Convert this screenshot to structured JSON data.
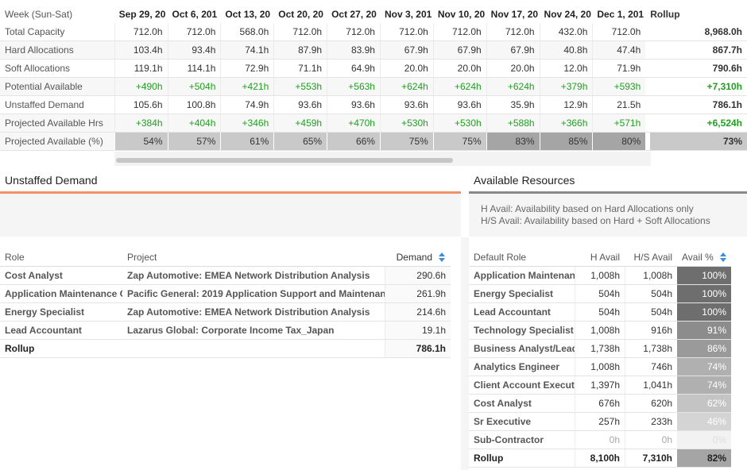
{
  "capacity": {
    "header_label": "Week (Sun-Sat)",
    "weeks": [
      "Sep 29, 20",
      "Oct 6, 201",
      "Oct 13, 20",
      "Oct 20, 20",
      "Oct 27, 20",
      "Nov 3, 201",
      "Nov 10, 20",
      "Nov 17, 20",
      "Nov 24, 20",
      "Dec 1, 201"
    ],
    "rollup_label": "Rollup",
    "rows": [
      {
        "label": "Total Capacity",
        "values": [
          "712.0h",
          "712.0h",
          "568.0h",
          "712.0h",
          "712.0h",
          "712.0h",
          "712.0h",
          "712.0h",
          "432.0h",
          "712.0h"
        ],
        "rollup": "8,968.0h"
      },
      {
        "label": "Hard Allocations",
        "values": [
          "103.4h",
          "93.4h",
          "74.1h",
          "87.9h",
          "83.9h",
          "67.9h",
          "67.9h",
          "67.9h",
          "40.8h",
          "47.4h"
        ],
        "rollup": "867.7h"
      },
      {
        "label": "Soft Allocations",
        "values": [
          "119.1h",
          "114.1h",
          "72.9h",
          "71.1h",
          "64.9h",
          "20.0h",
          "20.0h",
          "20.0h",
          "12.0h",
          "71.9h"
        ],
        "rollup": "790.6h"
      },
      {
        "label": "Potential Available",
        "values": [
          "+490h",
          "+504h",
          "+421h",
          "+553h",
          "+563h",
          "+624h",
          "+624h",
          "+624h",
          "+379h",
          "+593h"
        ],
        "rollup": "+7,310h"
      },
      {
        "label": "Unstaffed Demand",
        "values": [
          "105.6h",
          "100.8h",
          "74.9h",
          "93.6h",
          "93.6h",
          "93.6h",
          "93.6h",
          "35.9h",
          "12.9h",
          "21.5h"
        ],
        "rollup": "786.1h"
      },
      {
        "label": "Projected Available Hrs",
        "values": [
          "+384h",
          "+404h",
          "+346h",
          "+459h",
          "+470h",
          "+530h",
          "+530h",
          "+588h",
          "+366h",
          "+571h"
        ],
        "rollup": "+6,524h"
      }
    ],
    "pct_row": {
      "label": "Projected Available (%)",
      "values": [
        "54%",
        "57%",
        "61%",
        "65%",
        "66%",
        "75%",
        "75%",
        "83%",
        "85%",
        "80%"
      ],
      "colors": [
        "#c9c9c9",
        "#c9c9c9",
        "#c9c9c9",
        "#c9c9c9",
        "#c9c9c9",
        "#c9c9c9",
        "#c9c9c9",
        "#a5a5a5",
        "#a5a5a5",
        "#a5a5a5"
      ],
      "rollup": "73%"
    }
  },
  "unstaffed": {
    "title": "Unstaffed Demand",
    "accent": "#f0916b",
    "headers": {
      "role": "Role",
      "project": "Project",
      "demand": "Demand"
    },
    "rows": [
      {
        "role": "Cost Analyst",
        "project": "Zap Automotive: EMEA Network Distribution Analysis",
        "demand": "290.6h"
      },
      {
        "role": "Application Maintenance C",
        "project": "Pacific General: 2019 Application Support and Maintenan",
        "demand": "261.9h"
      },
      {
        "role": "Energy Specialist",
        "project": "Zap Automotive: EMEA Network Distribution Analysis",
        "demand": "214.6h"
      },
      {
        "role": "Lead Accountant",
        "project": "Lazarus Global: Corporate Income Tax_Japan",
        "demand": "19.1h"
      }
    ],
    "rollup": {
      "label": "Rollup",
      "demand": "786.1h"
    }
  },
  "resources": {
    "title": "Available Resources",
    "notes": [
      "H Avail: Availability based on Hard Allocations only",
      "H/S Avail: Availability based on Hard + Soft Allocations"
    ],
    "headers": {
      "role": "Default Role",
      "h": "H Avail",
      "hs": "H/S Avail",
      "pct": "Avail %"
    },
    "rows": [
      {
        "role": "Application Maintenan",
        "h": "1,008h",
        "hs": "1,008h",
        "pct": "100%",
        "color": "#6e6e6e"
      },
      {
        "role": "Energy Specialist",
        "h": "504h",
        "hs": "504h",
        "pct": "100%",
        "color": "#6e6e6e"
      },
      {
        "role": "Lead Accountant",
        "h": "504h",
        "hs": "504h",
        "pct": "100%",
        "color": "#6e6e6e"
      },
      {
        "role": "Technology Specialist",
        "h": "1,008h",
        "hs": "916h",
        "pct": "91%",
        "color": "#8c8c8c"
      },
      {
        "role": "Business Analyst/Lead",
        "h": "1,738h",
        "hs": "1,738h",
        "pct": "86%",
        "color": "#9a9a9a"
      },
      {
        "role": "Analytics Engineer",
        "h": "1,008h",
        "hs": "746h",
        "pct": "74%",
        "color": "#b0b0b0"
      },
      {
        "role": "Client Account Executi",
        "h": "1,397h",
        "hs": "1,041h",
        "pct": "74%",
        "color": "#b0b0b0"
      },
      {
        "role": "Cost Analyst",
        "h": "676h",
        "hs": "620h",
        "pct": "62%",
        "color": "#c4c4c4"
      },
      {
        "role": "Sr Executive",
        "h": "257h",
        "hs": "233h",
        "pct": "46%",
        "color": "#d4d4d4"
      },
      {
        "role": "Sub-Contractor",
        "h": "0h",
        "hs": "0h",
        "pct": "0%",
        "color": "#f2f2f2"
      }
    ],
    "rollup": {
      "label": "Rollup",
      "h": "8,100h",
      "hs": "7,310h",
      "pct": "82%",
      "color": "#a5a5a5"
    }
  }
}
